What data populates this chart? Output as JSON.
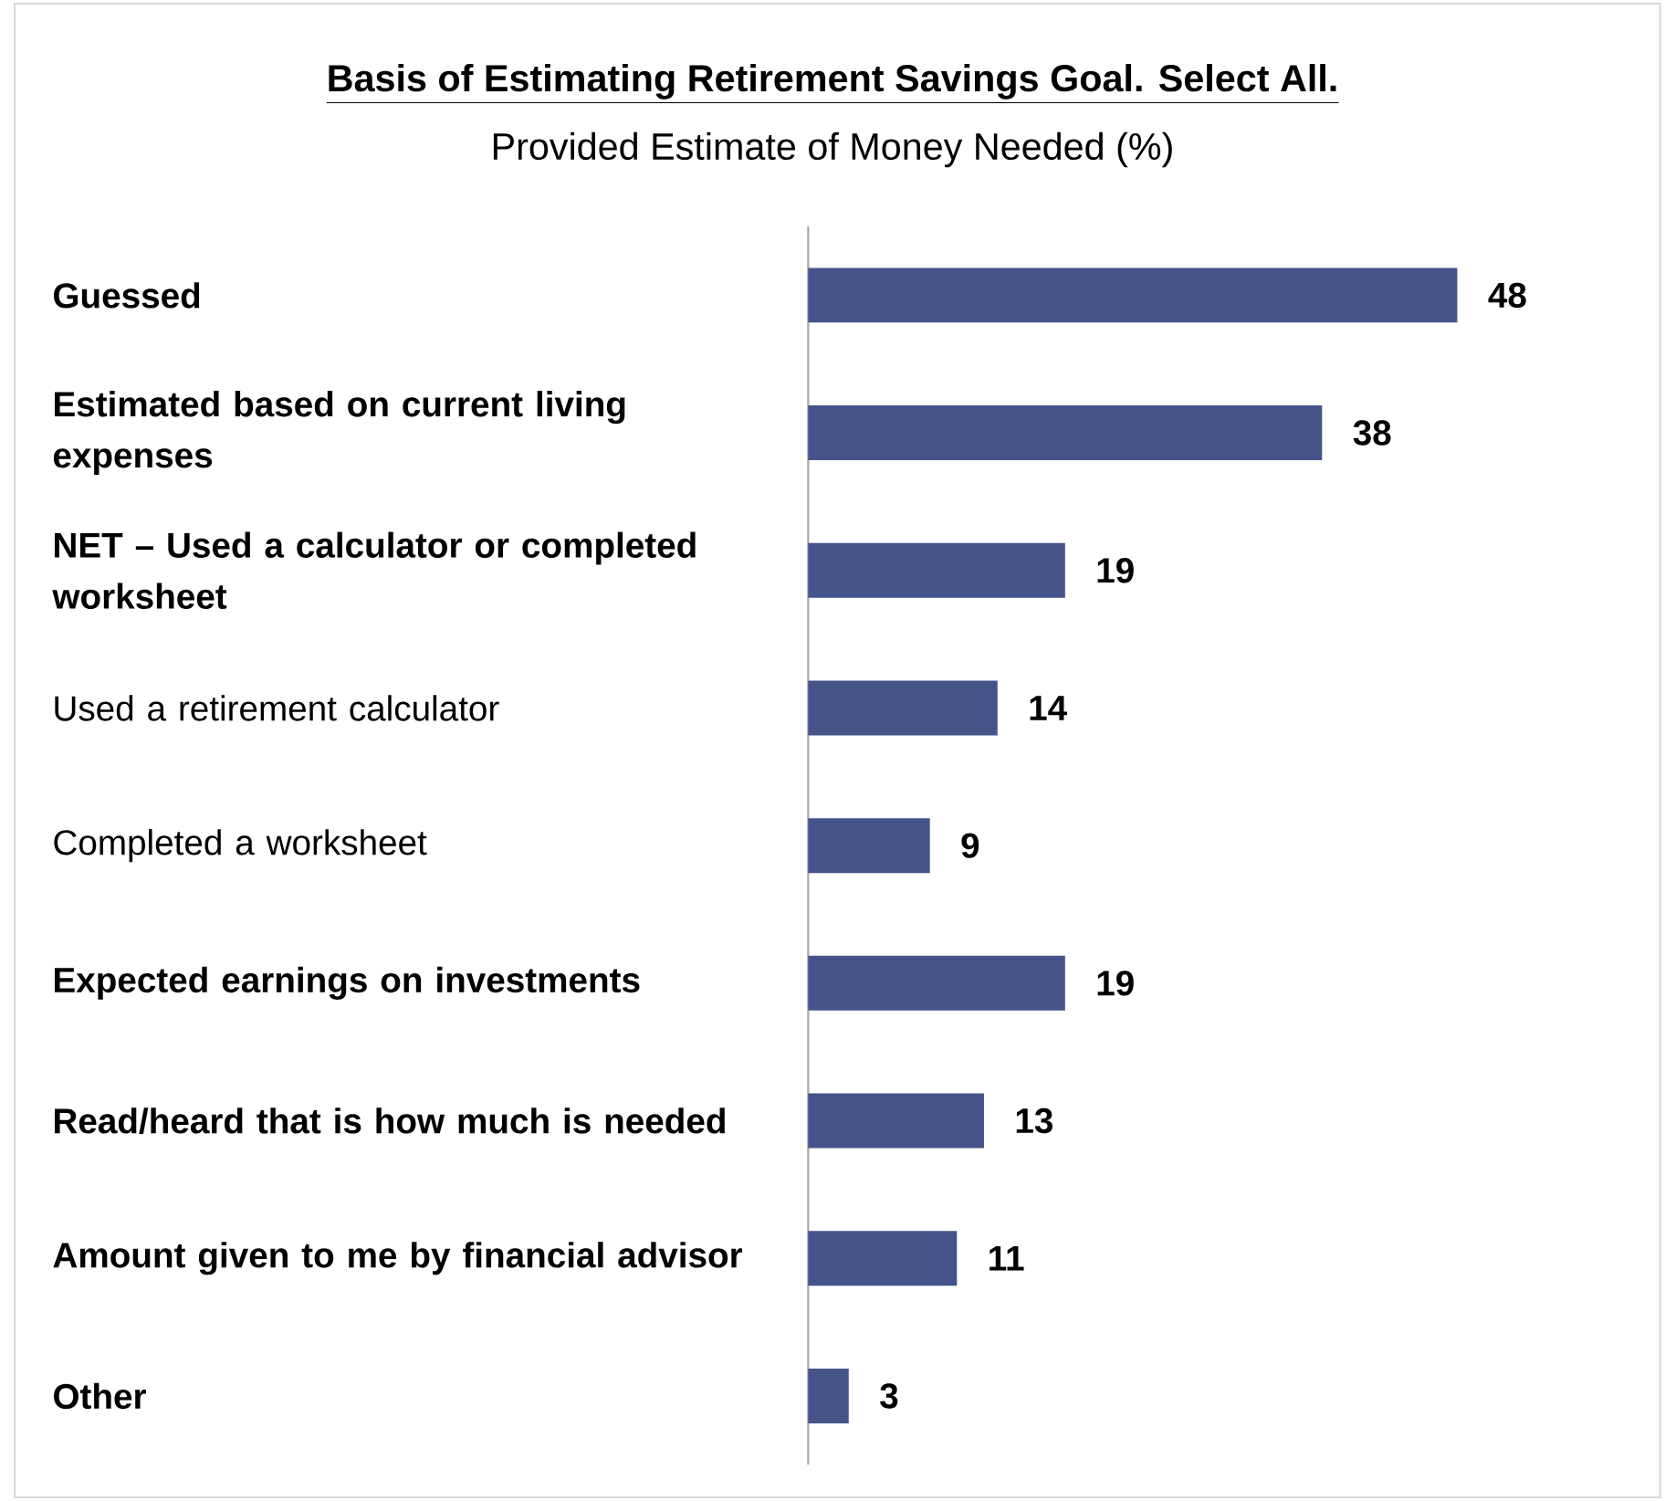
{
  "chart_data": {
    "type": "bar",
    "orientation": "horizontal",
    "title": "Basis of Estimating Retirement Savings Goal. Select All.",
    "subtitle": "Provided Estimate of Money Needed (%)",
    "categories": [
      "**Guessed**",
      "**Estimated based on current living expenses**",
      "**NET – Used a calculator or completed worksheet**",
      "Used a retirement calculator",
      "Completed a worksheet",
      "**Expected earnings on investments**",
      "**Read/heard that is how much is needed**",
      "**Amount given to me by financial advisor**",
      "**Other**"
    ],
    "values": [
      48,
      38,
      19,
      14,
      9,
      19,
      13,
      11,
      3
    ],
    "color": "#44548a",
    "data_labels": true
  }
}
